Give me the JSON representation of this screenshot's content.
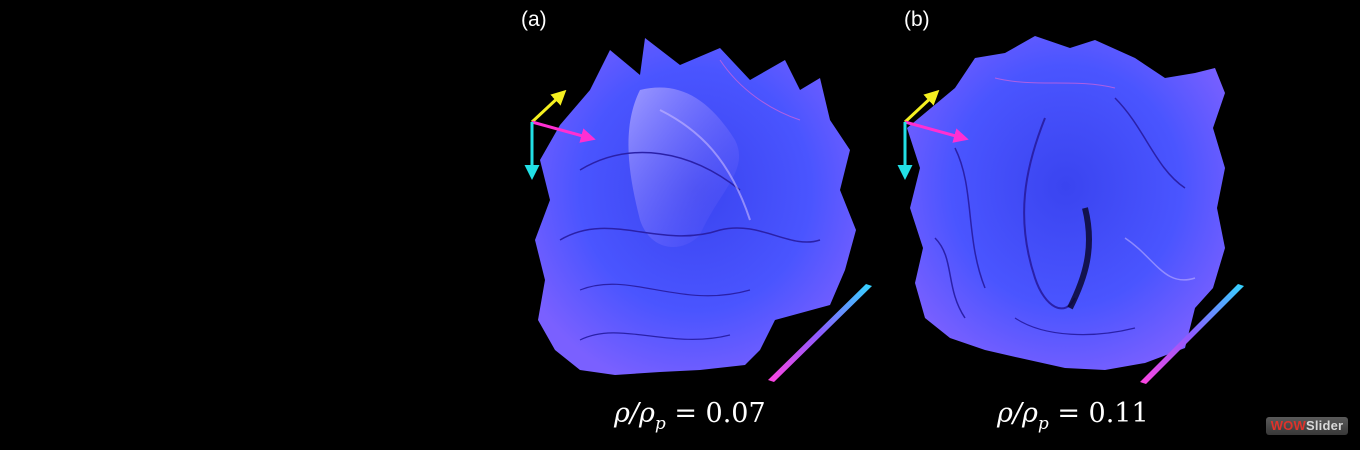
{
  "panels": [
    {
      "label": "(a)",
      "ratio": "0.07"
    },
    {
      "label": "(b)",
      "ratio": "0.11"
    }
  ],
  "caption_prefix": "ρ/ρ",
  "caption_subscript": "p",
  "caption_equals": " = ",
  "watermark": {
    "part1": "WOW",
    "part2": "Slider"
  },
  "colors": {
    "background": "#000000",
    "surface": "#4a55ff",
    "axis_yellow": "#f5f020",
    "axis_magenta": "#ff2fd2",
    "axis_cyan": "#22e0e6",
    "scale_bar_start": "#ff44e0",
    "scale_bar_end": "#33d6ff"
  }
}
